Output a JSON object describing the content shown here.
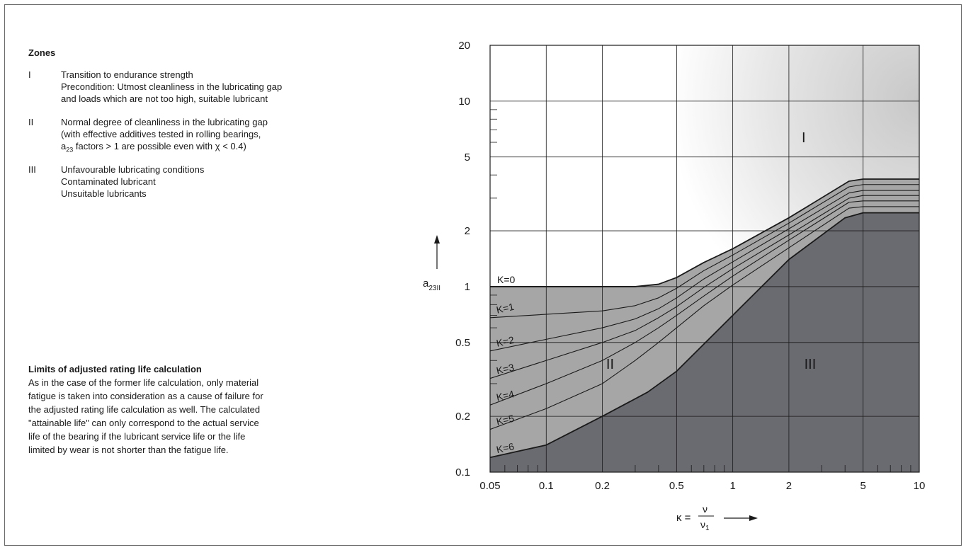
{
  "zones": {
    "title": "Zones",
    "items": [
      {
        "num": "I",
        "lines": [
          "Transition to endurance strength",
          "Precondition: Utmost cleanliness in the lubricating gap",
          "and loads which are not too high, suitable lubricant"
        ]
      },
      {
        "num": "II",
        "lines": [
          "Normal degree of cleanliness in the lubricating gap",
          "(with effective additives tested in rolling bearings,",
          "a23 factors > 1 are possible even with χ < 0.4)"
        ]
      },
      {
        "num": "III",
        "lines": [
          "Unfavourable lubricating conditions",
          "Contaminated lubricant",
          "Unsuitable lubricants"
        ]
      }
    ]
  },
  "limits": {
    "title": "Limits of adjusted rating life calculation",
    "lines": [
      "As in the case of the former life calculation, only material",
      "fatigue is taken into consideration as a cause of failure for",
      "the adjusted rating life calculation as well. The calculated",
      "\"attainable life\" can only correspond to the actual service",
      "life of the bearing if the lubricant service life or the life",
      "limited by wear is not shorter than the fatigue life."
    ]
  },
  "chart_data": {
    "type": "line",
    "xlabel": "κ = ν/ν1",
    "ylabel": "a23II",
    "xscale": "log",
    "yscale": "log",
    "xlim": [
      0.05,
      10
    ],
    "ylim": [
      0.1,
      20
    ],
    "xticks": [
      {
        "v": 0.05,
        "label": "0.05"
      },
      {
        "v": 0.1,
        "label": "0.1"
      },
      {
        "v": 0.2,
        "label": "0.2"
      },
      {
        "v": 0.5,
        "label": "0.5"
      },
      {
        "v": 1,
        "label": "1"
      },
      {
        "v": 2,
        "label": "2"
      },
      {
        "v": 5,
        "label": "5"
      },
      {
        "v": 10,
        "label": "10"
      }
    ],
    "yticks": [
      {
        "v": 0.1,
        "label": "0.1"
      },
      {
        "v": 0.2,
        "label": "0.2"
      },
      {
        "v": 0.5,
        "label": "0.5"
      },
      {
        "v": 1,
        "label": "1"
      },
      {
        "v": 2,
        "label": "2"
      },
      {
        "v": 5,
        "label": "5"
      },
      {
        "v": 10,
        "label": "10"
      },
      {
        "v": 20,
        "label": "20"
      }
    ],
    "grid": true,
    "series": [
      {
        "name": "K=0",
        "points": [
          [
            0.05,
            1.0
          ],
          [
            0.3,
            1.0
          ],
          [
            0.4,
            1.03
          ],
          [
            0.5,
            1.12
          ],
          [
            0.7,
            1.35
          ],
          [
            1,
            1.6
          ],
          [
            2,
            2.35
          ],
          [
            4.2,
            3.7
          ],
          [
            5,
            3.8
          ],
          [
            10,
            3.8
          ]
        ]
      },
      {
        "name": "K=1",
        "points": [
          [
            0.05,
            0.68
          ],
          [
            0.2,
            0.74
          ],
          [
            0.3,
            0.79
          ],
          [
            0.4,
            0.87
          ],
          [
            0.5,
            0.98
          ],
          [
            0.7,
            1.22
          ],
          [
            1,
            1.48
          ],
          [
            2,
            2.2
          ],
          [
            4.2,
            3.45
          ],
          [
            5,
            3.55
          ],
          [
            10,
            3.55
          ]
        ]
      },
      {
        "name": "K=2",
        "points": [
          [
            0.05,
            0.45
          ],
          [
            0.1,
            0.52
          ],
          [
            0.2,
            0.6
          ],
          [
            0.3,
            0.67
          ],
          [
            0.4,
            0.76
          ],
          [
            0.5,
            0.87
          ],
          [
            0.7,
            1.1
          ],
          [
            1,
            1.36
          ],
          [
            2,
            2.05
          ],
          [
            4.2,
            3.2
          ],
          [
            5,
            3.3
          ],
          [
            10,
            3.3
          ]
        ]
      },
      {
        "name": "K=3",
        "points": [
          [
            0.05,
            0.32
          ],
          [
            0.1,
            0.4
          ],
          [
            0.2,
            0.5
          ],
          [
            0.3,
            0.58
          ],
          [
            0.4,
            0.68
          ],
          [
            0.5,
            0.78
          ],
          [
            0.7,
            0.99
          ],
          [
            1,
            1.25
          ],
          [
            2,
            1.9
          ],
          [
            4.2,
            3.0
          ],
          [
            5,
            3.1
          ],
          [
            10,
            3.1
          ]
        ]
      },
      {
        "name": "K=4",
        "points": [
          [
            0.05,
            0.23
          ],
          [
            0.1,
            0.3
          ],
          [
            0.2,
            0.4
          ],
          [
            0.3,
            0.5
          ],
          [
            0.4,
            0.6
          ],
          [
            0.5,
            0.7
          ],
          [
            0.7,
            0.89
          ],
          [
            1,
            1.14
          ],
          [
            2,
            1.78
          ],
          [
            4.2,
            2.85
          ],
          [
            5,
            2.9
          ],
          [
            10,
            2.9
          ]
        ]
      },
      {
        "name": "K=5",
        "points": [
          [
            0.05,
            0.17
          ],
          [
            0.1,
            0.22
          ],
          [
            0.2,
            0.3
          ],
          [
            0.3,
            0.4
          ],
          [
            0.4,
            0.5
          ],
          [
            0.5,
            0.6
          ],
          [
            0.7,
            0.79
          ],
          [
            1,
            1.02
          ],
          [
            2,
            1.62
          ],
          [
            4.2,
            2.65
          ],
          [
            5,
            2.7
          ],
          [
            10,
            2.7
          ]
        ]
      },
      {
        "name": "K=6",
        "points": [
          [
            0.05,
            0.12
          ],
          [
            0.1,
            0.14
          ],
          [
            0.2,
            0.2
          ],
          [
            0.35,
            0.27
          ],
          [
            0.5,
            0.35
          ],
          [
            1,
            0.7
          ],
          [
            2,
            1.4
          ],
          [
            4,
            2.35
          ],
          [
            5,
            2.5
          ],
          [
            10,
            2.5
          ]
        ]
      }
    ],
    "zone_labels": [
      {
        "text": "I",
        "x": 2.4,
        "y": 6.0
      },
      {
        "text": "II",
        "x": 0.22,
        "y": 0.36
      },
      {
        "text": "III",
        "x": 2.6,
        "y": 0.36
      }
    ],
    "colors": {
      "zone_I_shade": "#c8c8c8",
      "zone_II": "#a6a6a6",
      "zone_III": "#6a6b70",
      "line": "#1a1a1a",
      "grid": "#1a1a1a"
    }
  }
}
